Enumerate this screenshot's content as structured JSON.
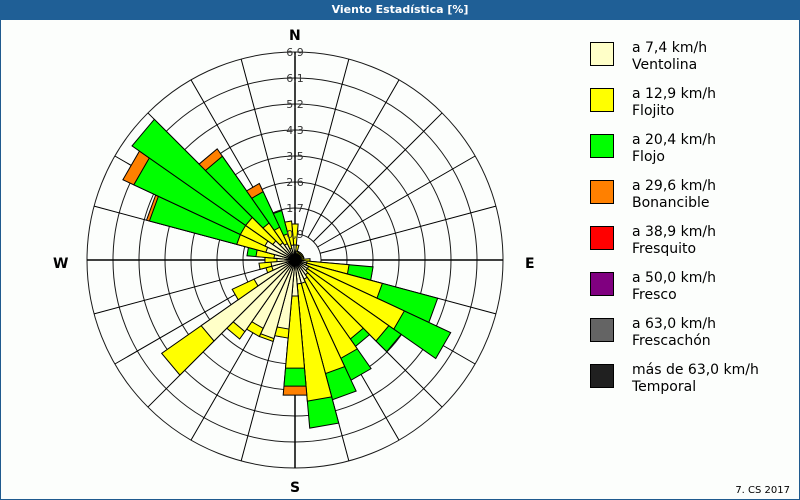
{
  "window": {
    "title": "Viento Estadística [%]",
    "credit": "7. CS 2017"
  },
  "directions": {
    "n": "N",
    "s": "S",
    "e": "E",
    "w": "W"
  },
  "legend": [
    {
      "speed": "a 7,4 km/h",
      "name": "Ventolina",
      "color": "#ffffc8"
    },
    {
      "speed": "a 12,9 km/h",
      "name": "Flojito",
      "color": "#ffff00"
    },
    {
      "speed": "a 20,4 km/h",
      "name": "Flojo",
      "color": "#00ff00"
    },
    {
      "speed": "a 29,6 km/h",
      "name": "Bonancible",
      "color": "#ff8000"
    },
    {
      "speed": "a 38,9 km/h",
      "name": "Fresquito",
      "color": "#ff0000"
    },
    {
      "speed": "a 50,0 km/h",
      "name": "Fresco",
      "color": "#800080"
    },
    {
      "speed": "a 63,0 km/h",
      "name": "Frescachón",
      "color": "#646464"
    },
    {
      "speed": "más de 63,0 km/h",
      "name": "Temporal",
      "color": "#202020"
    }
  ],
  "chart_data": {
    "type": "wind-rose",
    "title": "Viento Estadística [%]",
    "unit": "%",
    "ring_labels": [
      "0,9",
      "1,7",
      "2,6",
      "3,5",
      "4,3",
      "5,2",
      "6,1",
      "6,9"
    ],
    "rmax": 6.9,
    "sector_width_deg": 10,
    "series_names": [
      "Ventolina",
      "Flojito",
      "Flojo",
      "Bonancible",
      "Fresquito",
      "Fresco",
      "Frescachón",
      "Temporal"
    ],
    "sectors": [
      {
        "dir": 0,
        "cum": [
          0.5,
          1.2
        ]
      },
      {
        "dir": 10,
        "cum": [
          0.3,
          0.5
        ]
      },
      {
        "dir": 20,
        "cum": [
          0.2,
          0.3
        ]
      },
      {
        "dir": 30,
        "cum": [
          0.2,
          0.3
        ]
      },
      {
        "dir": 40,
        "cum": [
          0.2,
          0.3
        ]
      },
      {
        "dir": 50,
        "cum": [
          0.2,
          0.3
        ]
      },
      {
        "dir": 60,
        "cum": [
          0.2,
          0.3
        ]
      },
      {
        "dir": 70,
        "cum": [
          0.2,
          0.3
        ]
      },
      {
        "dir": 80,
        "cum": [
          0.2,
          0.3
        ]
      },
      {
        "dir": 90,
        "cum": [
          0.2,
          0.5
        ]
      },
      {
        "dir": 100,
        "cum": [
          0.4,
          1.8,
          2.6
        ]
      },
      {
        "dir": 110,
        "cum": [
          0.4,
          3.0,
          4.9
        ]
      },
      {
        "dir": 120,
        "cum": [
          0.5,
          4.0,
          5.7
        ]
      },
      {
        "dir": 130,
        "cum": [
          0.5,
          3.8,
          4.3
        ]
      },
      {
        "dir": 140,
        "cum": [
          0.6,
          3.2,
          3.5
        ]
      },
      {
        "dir": 150,
        "cum": [
          0.7,
          3.6,
          4.4
        ]
      },
      {
        "dir": 160,
        "cum": [
          0.8,
          3.9,
          4.8
        ]
      },
      {
        "dir": 170,
        "cum": [
          0.8,
          4.7,
          5.6
        ]
      },
      {
        "dir": 180,
        "cum": [
          1.2,
          3.6,
          4.2,
          4.5
        ]
      },
      {
        "dir": 190,
        "cum": [
          2.3,
          2.6
        ]
      },
      {
        "dir": 200,
        "cum": [
          2.7,
          2.8
        ]
      },
      {
        "dir": 210,
        "cum": [
          2.5,
          2.8
        ]
      },
      {
        "dir": 220,
        "cum": [
          2.9,
          3.2
        ]
      },
      {
        "dir": 230,
        "cum": [
          3.8,
          5.4
        ]
      },
      {
        "dir": 240,
        "cum": [
          1.5,
          2.3
        ]
      },
      {
        "dir": 250,
        "cum": [
          0.8,
          1.0
        ]
      },
      {
        "dir": 260,
        "cum": [
          0.8,
          1.2
        ]
      },
      {
        "dir": 270,
        "cum": [
          0.6,
          1.0
        ]
      },
      {
        "dir": 280,
        "cum": [
          0.7,
          1.3,
          1.6
        ]
      },
      {
        "dir": 290,
        "cum": [
          1.0,
          2.0,
          5.0,
          5.1
        ]
      },
      {
        "dir": 300,
        "cum": [
          1.1,
          2.0,
          5.9,
          6.3
        ]
      },
      {
        "dir": 310,
        "cum": [
          0.9,
          2.0,
          6.6
        ]
      },
      {
        "dir": 320,
        "cum": [
          0.7,
          1.5,
          4.2,
          4.5
        ]
      },
      {
        "dir": 330,
        "cum": [
          0.6,
          1.2,
          2.5,
          2.8
        ]
      },
      {
        "dir": 340,
        "cum": [
          0.4,
          0.9,
          1.7
        ]
      },
      {
        "dir": 350,
        "cum": [
          0.5,
          1.3
        ]
      }
    ]
  }
}
